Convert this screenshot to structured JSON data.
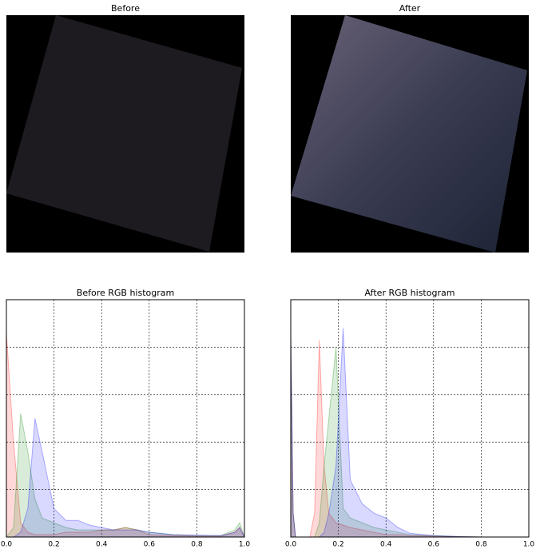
{
  "chart_data": [
    {
      "type": "image",
      "title": "Before"
    },
    {
      "type": "image",
      "title": "After"
    },
    {
      "type": "area",
      "title": "Before RGB histogram",
      "grid": true,
      "opacity": 0.15,
      "show_ytick_labels": false,
      "xlim": [
        0,
        1
      ],
      "ylim": [
        0,
        5
      ],
      "xticks": [
        {
          "value": 0,
          "label": "0.0"
        },
        {
          "value": 0.2,
          "label": "0.2"
        },
        {
          "value": 0.4,
          "label": "0.4"
        },
        {
          "value": 0.6,
          "label": "0.6"
        },
        {
          "value": 0.8,
          "label": "0.8"
        },
        {
          "value": 1,
          "label": "1.0"
        }
      ],
      "yticks": [
        0,
        1,
        2,
        3,
        4,
        5
      ],
      "x": [
        0,
        0.03,
        0.06,
        0.09,
        0.12,
        0.15,
        0.2,
        0.25,
        0.3,
        0.35,
        0.4,
        0.45,
        0.5,
        0.55,
        0.6,
        0.7,
        0.8,
        0.9,
        0.96,
        0.98,
        1.0
      ],
      "series": [
        {
          "color": "#ff0000",
          "values": [
            4.3,
            2.0,
            0.3,
            0.1,
            0.05,
            0.05,
            0.05,
            0.1,
            0.1,
            0.1,
            0.15,
            0.15,
            0.2,
            0.15,
            0.05,
            0.03,
            0.02,
            0.02,
            0.1,
            0.2,
            0
          ]
        },
        {
          "color": "#008000",
          "values": [
            0,
            0.2,
            2.6,
            1.8,
            0.8,
            0.4,
            0.3,
            0.2,
            0.15,
            0.15,
            0.15,
            0.15,
            0.2,
            0.15,
            0.1,
            0.05,
            0.03,
            0.03,
            0.15,
            0.3,
            0
          ]
        },
        {
          "color": "#0000ff",
          "values": [
            0,
            0,
            0.1,
            0.6,
            2.5,
            1.8,
            0.6,
            0.35,
            0.35,
            0.25,
            0.2,
            0.15,
            0.15,
            0.15,
            0.1,
            0.05,
            0.04,
            0.03,
            0.1,
            0.2,
            0
          ]
        }
      ]
    },
    {
      "type": "area",
      "title": "After RGB histogram",
      "grid": true,
      "opacity": 0.15,
      "show_ytick_labels": false,
      "xlim": [
        0,
        1
      ],
      "ylim": [
        0,
        5
      ],
      "xticks": [
        {
          "value": 0,
          "label": "0.0"
        },
        {
          "value": 0.2,
          "label": "0.2"
        },
        {
          "value": 0.4,
          "label": "0.4"
        },
        {
          "value": 0.6,
          "label": "0.6"
        },
        {
          "value": 0.8,
          "label": "0.8"
        },
        {
          "value": 1,
          "label": "1.0"
        }
      ],
      "yticks": [
        0,
        1,
        2,
        3,
        4,
        5
      ],
      "x": [
        0,
        0.01,
        0.02,
        0.08,
        0.1,
        0.12,
        0.14,
        0.16,
        0.19,
        0.22,
        0.25,
        0.3,
        0.35,
        0.4,
        0.45,
        0.5,
        0.6,
        0.7,
        0.8,
        1.0
      ],
      "series": [
        {
          "color": "#ff0000",
          "values": [
            4.2,
            0.5,
            0,
            0,
            0.5,
            4.15,
            1.5,
            0.5,
            0.3,
            0.25,
            0.2,
            0.15,
            0.1,
            0.05,
            0.05,
            0.03,
            0.02,
            0.01,
            0,
            0
          ]
        },
        {
          "color": "#008000",
          "values": [
            4.2,
            0.5,
            0,
            0,
            0,
            0.3,
            1.5,
            2.5,
            4.0,
            0.6,
            0.4,
            0.3,
            0.2,
            0.15,
            0.1,
            0.05,
            0.03,
            0.01,
            0,
            0
          ]
        },
        {
          "color": "#0000ff",
          "values": [
            4.3,
            0.5,
            0,
            0,
            0,
            0,
            0.1,
            0.5,
            1.5,
            4.4,
            1.2,
            0.7,
            0.5,
            0.4,
            0.2,
            0.08,
            0.03,
            0.01,
            0,
            0
          ]
        }
      ]
    }
  ]
}
